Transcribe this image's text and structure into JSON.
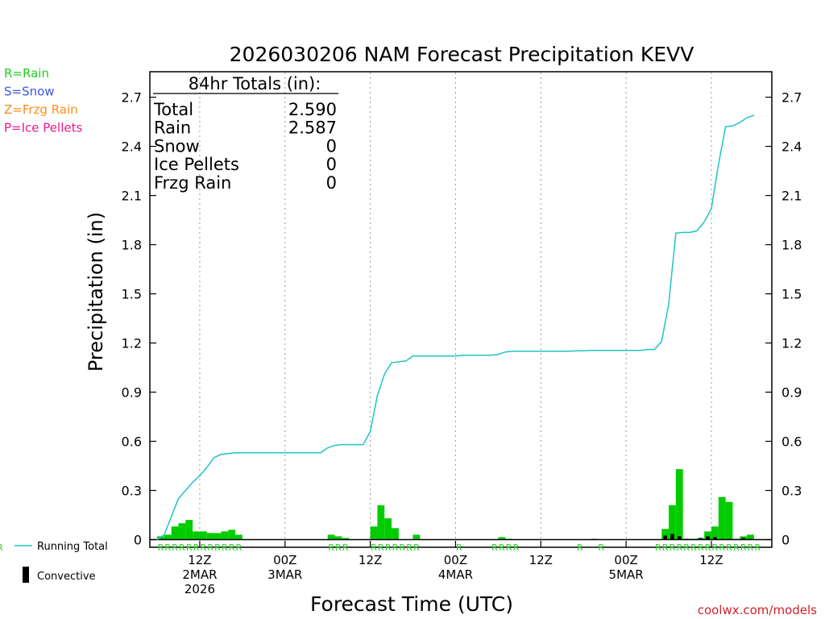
{
  "chart_data": {
    "type": "bar+line",
    "title": "2026030206 NAM Forecast Precipitation KEVV",
    "ylabel": "Precipitation (in)",
    "xlabel": "Forecast Time (UTC)",
    "ylim": [
      0,
      2.8
    ],
    "yticks": [
      0,
      0.3,
      0.6,
      0.9,
      1.2,
      1.5,
      1.8,
      2.1,
      2.4,
      2.7
    ],
    "ytick_labels": [
      "0",
      "0.3",
      "0.6",
      "0.9",
      "1.2",
      "1.5",
      "1.8",
      "2.1",
      "2.4",
      "2.7"
    ],
    "x_range_hours": [
      0,
      84
    ],
    "x_ticks": [
      {
        "hour": 6,
        "lines": [
          "12Z",
          "2MAR",
          "2026"
        ]
      },
      {
        "hour": 18,
        "lines": [
          "00Z",
          "3MAR"
        ]
      },
      {
        "hour": 30,
        "lines": [
          "12Z"
        ]
      },
      {
        "hour": 42,
        "lines": [
          "00Z",
          "4MAR"
        ]
      },
      {
        "hour": 54,
        "lines": [
          "12Z"
        ]
      },
      {
        "hour": 66,
        "lines": [
          "00Z",
          "5MAR"
        ]
      },
      {
        "hour": 78,
        "lines": [
          "12Z"
        ]
      }
    ],
    "legend_types": [
      {
        "label": "R=Rain",
        "color": "#22cc22"
      },
      {
        "label": "S=Snow",
        "color": "#3b55e6"
      },
      {
        "label": "Z=Frzg Rain",
        "color": "#ff8c1a"
      },
      {
        "label": "P=Ice Pellets",
        "color": "#e6198c"
      }
    ],
    "legend_lines": {
      "running_total": "Running Total",
      "convective": "Convective"
    },
    "totals": {
      "heading": "84hr Totals (in):",
      "rows": [
        {
          "label": "Total",
          "value": "2.590"
        },
        {
          "label": "Rain",
          "value": "2.587"
        },
        {
          "label": "Snow",
          "value": "0"
        },
        {
          "label": "Ice Pellets",
          "value": "0"
        },
        {
          "label": "Frzg Rain",
          "value": "0"
        }
      ]
    },
    "hours": [
      0,
      1,
      2,
      3,
      4,
      5,
      6,
      7,
      8,
      9,
      10,
      11,
      12,
      13,
      14,
      15,
      16,
      17,
      18,
      19,
      20,
      21,
      22,
      23,
      24,
      25,
      26,
      27,
      28,
      29,
      30,
      31,
      32,
      33,
      34,
      35,
      36,
      37,
      38,
      39,
      40,
      41,
      42,
      43,
      44,
      45,
      46,
      47,
      48,
      49,
      50,
      51,
      52,
      53,
      54,
      55,
      56,
      57,
      58,
      59,
      60,
      61,
      62,
      63,
      64,
      65,
      66,
      67,
      68,
      69,
      70,
      71,
      72,
      73,
      74,
      75,
      76,
      77,
      78,
      79,
      80,
      81,
      82,
      83,
      84
    ],
    "running_total": [
      0,
      0.03,
      0.14,
      0.25,
      0.3,
      0.35,
      0.39,
      0.44,
      0.5,
      0.52,
      0.525,
      0.53,
      0.53,
      0.53,
      0.53,
      0.53,
      0.53,
      0.53,
      0.53,
      0.53,
      0.53,
      0.53,
      0.53,
      0.53,
      0.56,
      0.575,
      0.58,
      0.58,
      0.58,
      0.58,
      0.66,
      0.88,
      1.01,
      1.08,
      1.085,
      1.09,
      1.12,
      1.12,
      1.12,
      1.12,
      1.12,
      1.12,
      1.12,
      1.125,
      1.125,
      1.125,
      1.125,
      1.125,
      1.13,
      1.145,
      1.15,
      1.15,
      1.15,
      1.15,
      1.15,
      1.15,
      1.15,
      1.15,
      1.15,
      1.152,
      1.152,
      1.155,
      1.155,
      1.155,
      1.155,
      1.155,
      1.155,
      1.155,
      1.155,
      1.16,
      1.16,
      1.21,
      1.44,
      1.87,
      1.875,
      1.875,
      1.885,
      1.94,
      2.02,
      2.29,
      2.52,
      2.525,
      2.545,
      2.575,
      2.59
    ],
    "hourly_precip": [
      0.02,
      0.03,
      0.08,
      0.1,
      0.12,
      0.05,
      0.05,
      0.04,
      0.04,
      0.05,
      0.06,
      0.03,
      0,
      0,
      0,
      0,
      0,
      0,
      0,
      0,
      0,
      0,
      0,
      0,
      0.03,
      0.02,
      0.01,
      0,
      0,
      0,
      0.08,
      0.21,
      0.13,
      0.07,
      0,
      0,
      0.03,
      0,
      0,
      0,
      0,
      0,
      0,
      0,
      0,
      0,
      0,
      0,
      0.015,
      0.005,
      0,
      0,
      0,
      0,
      0,
      0,
      0,
      0,
      0,
      0,
      0,
      0.004,
      0,
      0,
      0,
      0,
      0,
      0,
      0,
      0,
      0,
      0.065,
      0.21,
      0.43,
      0.005,
      0.005,
      0.01,
      0.05,
      0.08,
      0.26,
      0.23,
      0.005,
      0.02,
      0.03
    ],
    "convective": [
      0,
      0,
      0,
      0,
      0,
      0,
      0,
      0,
      0,
      0,
      0,
      0,
      0,
      0,
      0,
      0,
      0,
      0,
      0,
      0,
      0,
      0,
      0,
      0,
      0,
      0,
      0,
      0,
      0,
      0,
      0,
      0,
      0,
      0,
      0,
      0,
      0,
      0,
      0,
      0,
      0,
      0,
      0,
      0,
      0,
      0,
      0,
      0,
      0,
      0,
      0,
      0,
      0,
      0,
      0,
      0,
      0,
      0,
      0,
      0,
      0,
      0.004,
      0,
      0,
      0,
      0,
      0,
      0,
      0,
      0,
      0,
      0.025,
      0.035,
      0.02,
      0.005,
      0.004,
      0.01,
      0.02,
      0.015,
      0.005,
      0.005,
      0.003,
      0.01,
      0.005
    ],
    "ptype_marks": [
      "R",
      "R",
      "R",
      "R",
      "R",
      "R",
      "R",
      "R",
      "R",
      "R",
      "R",
      "R",
      "",
      "",
      "",
      "",
      "",
      "",
      "",
      "",
      "",
      "",
      "",
      "",
      "R",
      "R",
      "R",
      "",
      "",
      "",
      "R",
      "R",
      "R",
      "R",
      "R",
      "R",
      "R",
      "",
      "",
      "",
      "",
      "",
      "R",
      "",
      "",
      "",
      "",
      "R",
      "R",
      "R",
      "R",
      "",
      "",
      "",
      "",
      "",
      "",
      "",
      "",
      "R",
      "",
      "",
      "R",
      "",
      "",
      "",
      "",
      "",
      "",
      "",
      "R",
      "R",
      "R",
      "R",
      "R",
      "R",
      "R",
      "R",
      "R",
      "R",
      "R",
      "R",
      "R",
      "R",
      "R",
      "R"
    ],
    "credit": "coolwx.com/models"
  }
}
